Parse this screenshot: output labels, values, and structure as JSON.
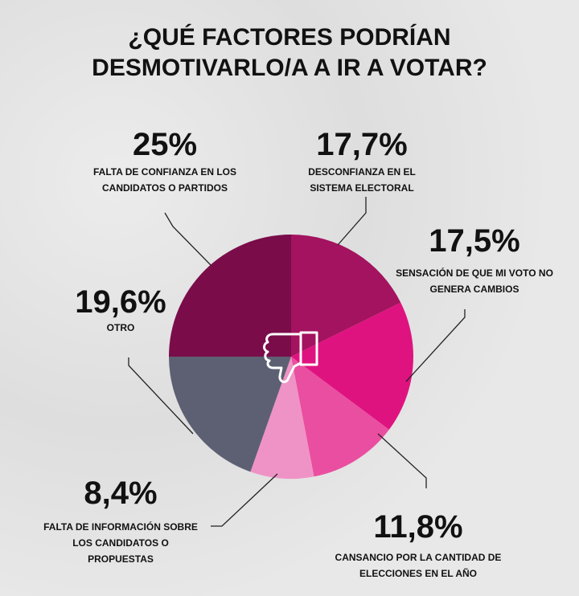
{
  "chart_data": {
    "type": "pie",
    "title": "¿QUÉ FACTORES PODRÍAN DESMOTIVARLO/A A IR A VOTAR?",
    "categories": [
      "FALTA DE CONFIANZA EN LOS CANDIDATOS O PARTIDOS",
      "DESCONFIANZA EN EL SISTEMA ELECTORAL",
      "SENSACIÓN DE QUE MI VOTO NO GENERA CAMBIOS",
      "CANSANCIO POR LA CANTIDAD DE ELECCIONES EN EL AÑO",
      "FALTA DE INFORMACIÓN SOBRE LOS CANDIDATOS O PROPUESTAS",
      "OTRO"
    ],
    "values": [
      25,
      17.7,
      17.5,
      11.8,
      8.4,
      19.6
    ],
    "value_labels": [
      "25%",
      "17,7%",
      "17,5%",
      "11,8%",
      "8,4%",
      "19,6%"
    ],
    "colors": [
      "#7a0c4a",
      "#a3135f",
      "#df1380",
      "#ea4ea0",
      "#ef93c6",
      "#5d6072"
    ]
  }
}
